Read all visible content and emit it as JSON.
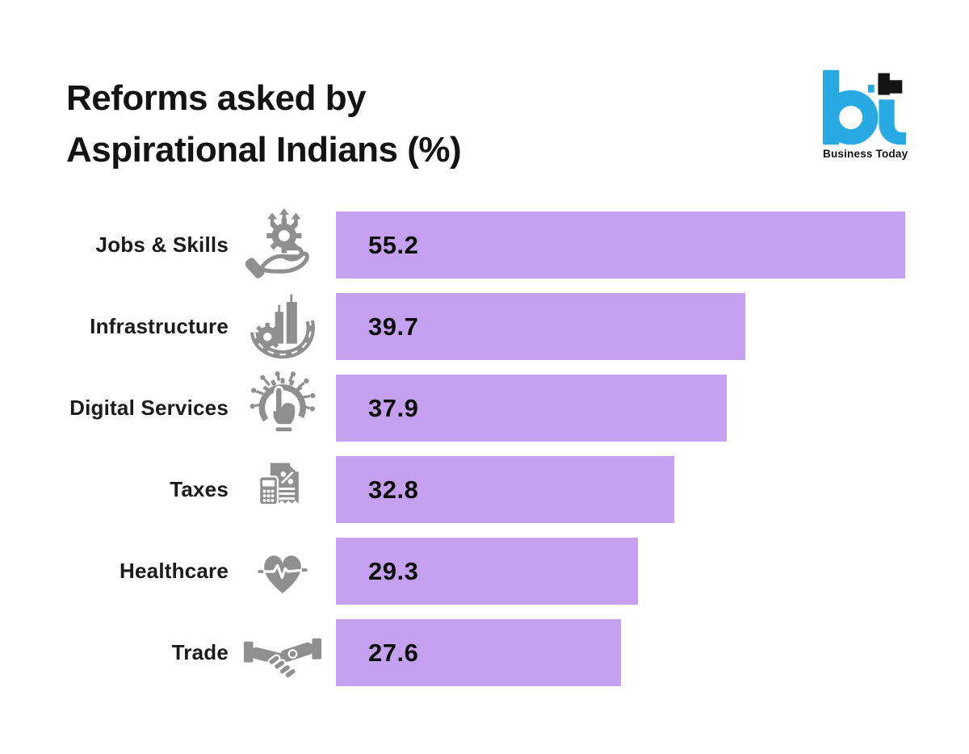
{
  "header": {
    "title_line1": "Reforms asked by",
    "title_line2": "Aspirational Indians (%)",
    "logo": {
      "monogram": "bt",
      "caption": "Business Today",
      "blue": "#29A9E1",
      "black": "#141414"
    }
  },
  "chart_data": {
    "type": "bar",
    "orientation": "horizontal",
    "title": "Reforms asked by Aspirational Indians (%)",
    "categories": [
      "Jobs & Skills",
      "Infrastructure",
      "Digital Services",
      "Taxes",
      "Healthcare",
      "Trade"
    ],
    "values": [
      55.2,
      39.7,
      37.9,
      32.8,
      29.3,
      27.6
    ],
    "icons": [
      "hand-gear-icon",
      "infrastructure-icon",
      "digital-touch-icon",
      "tax-calculator-icon",
      "heart-pulse-icon",
      "handshake-icon"
    ],
    "value_label_position": "inside-left",
    "value_format": "one-decimal",
    "xlim": [
      0,
      55.2
    ],
    "grid": false,
    "legend": "none",
    "axes_visible": false,
    "bar_color": "#C5A0EE",
    "value_label_color": "#0C0C0C",
    "icon_color": "#8F8F8F",
    "background": "#FFFFFF"
  }
}
